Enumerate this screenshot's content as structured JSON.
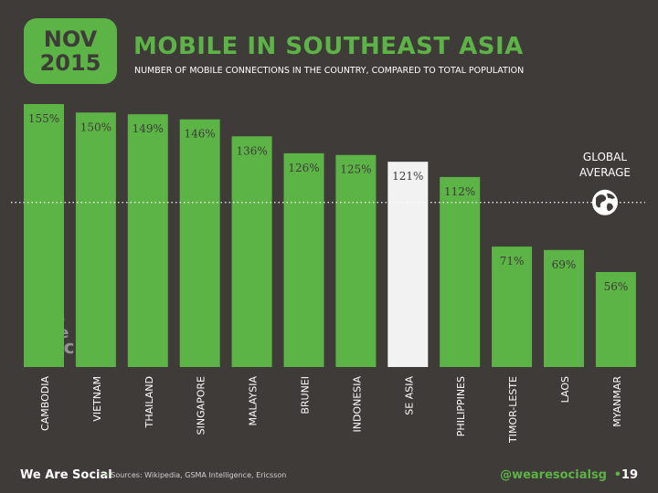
{
  "header": {
    "month": "NOV",
    "year": "2015",
    "title": "MOBILE IN SOUTHEAST ASIA",
    "subtitle": "NUMBER OF MOBILE CONNECTIONS IN THE COUNTRY, COMPARED TO TOTAL POPULATION"
  },
  "chart_data": {
    "type": "bar",
    "categories": [
      "CAMBODIA",
      "VIETNAM",
      "THAILAND",
      "SINGAPORE",
      "MALAYSIA",
      "BRUNEI",
      "INDONESIA",
      "SE ASIA",
      "PHILIPPINES",
      "TIMOR-LESTE",
      "LAOS",
      "MYANMAR"
    ],
    "values": [
      155,
      150,
      149,
      146,
      136,
      126,
      125,
      121,
      112,
      71,
      69,
      56
    ],
    "value_labels": [
      "155%",
      "150%",
      "149%",
      "146%",
      "136%",
      "126%",
      "125%",
      "121%",
      "112%",
      "71%",
      "69%",
      "56%"
    ],
    "highlight_category": "SE ASIA",
    "reference_line": {
      "label_line1": "GLOBAL",
      "label_line2": "AVERAGE",
      "value": 97
    },
    "ylim": [
      0,
      160
    ],
    "grid": false,
    "legend": "none",
    "colors": {
      "bar": "#5cb346",
      "highlight": "#f2f2f2",
      "background": "#3e3b38",
      "text": "#ffffff"
    }
  },
  "watermark": {
    "line1": "we",
    "line2": "are",
    "line3": "social"
  },
  "footer": {
    "brand": "We Are Social",
    "separator": "•",
    "sources": "Sources: Wikipedia, GSMA Intelligence, Ericsson",
    "handle": "@wearesocialsg",
    "page_separator": "•",
    "page": "19"
  }
}
